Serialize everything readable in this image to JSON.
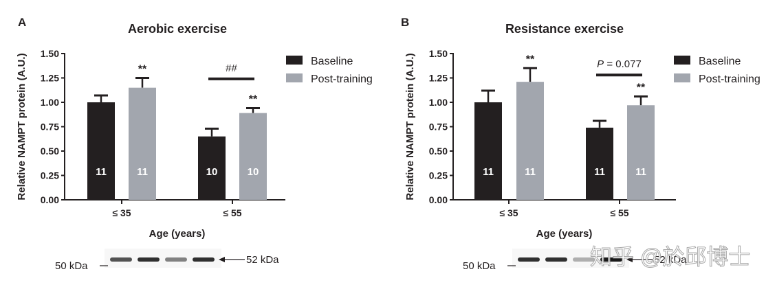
{
  "colors": {
    "baseline": "#231f20",
    "post": "#a2a6ae",
    "axis": "#231f20"
  },
  "chart_data": [
    {
      "type": "bar",
      "panel_label": "A",
      "title": "Aerobic exercise",
      "xlabel": "Age (years)",
      "ylabel": "Relative NAMPT protein (A.U.)",
      "ylim": [
        0,
        1.5
      ],
      "yticks": [
        "0.00",
        "0.25",
        "0.50",
        "0.75",
        "1.00",
        "1.25",
        "1.50"
      ],
      "categories": [
        "≤ 35",
        "≤ 55"
      ],
      "legend": {
        "placement": "top-right",
        "entries": [
          "Baseline",
          "Post-training"
        ]
      },
      "series": [
        {
          "name": "Baseline",
          "values": [
            1.0,
            0.65
          ],
          "errors": [
            0.07,
            0.08
          ],
          "n": [
            "11",
            "10"
          ],
          "annotations": [
            "",
            ""
          ]
        },
        {
          "name": "Post-training",
          "values": [
            1.15,
            0.89
          ],
          "errors": [
            0.1,
            0.05
          ],
          "n": [
            "11",
            "10"
          ],
          "annotations": [
            "**",
            "**"
          ]
        }
      ],
      "bracket": {
        "category": 1,
        "label": "##",
        "italic_prefix": "",
        "y": 1.24
      },
      "blot": {
        "left_label": "50 kDa",
        "right_label": "52 kDa",
        "band_intensities": [
          0.75,
          0.9,
          0.55,
          0.9
        ]
      }
    },
    {
      "type": "bar",
      "panel_label": "B",
      "title": "Resistance exercise",
      "xlabel": "Age (years)",
      "ylabel": "Relative NAMPT protein (A.U.)",
      "ylim": [
        0,
        1.5
      ],
      "yticks": [
        "0.00",
        "0.25",
        "0.50",
        "0.75",
        "1.00",
        "1.25",
        "1.50"
      ],
      "categories": [
        "≤ 35",
        "≤ 55"
      ],
      "legend": {
        "placement": "top-right",
        "entries": [
          "Baseline",
          "Post-training"
        ]
      },
      "series": [
        {
          "name": "Baseline",
          "values": [
            1.0,
            0.74
          ],
          "errors": [
            0.12,
            0.07
          ],
          "n": [
            "11",
            "11"
          ],
          "annotations": [
            "",
            ""
          ]
        },
        {
          "name": "Post-training",
          "values": [
            1.21,
            0.97
          ],
          "errors": [
            0.14,
            0.09
          ],
          "n": [
            "11",
            "11"
          ],
          "annotations": [
            "**",
            "**"
          ]
        }
      ],
      "bracket": {
        "category": 1,
        "label": " = 0.077",
        "italic_prefix": "P",
        "y": 1.28
      },
      "blot": {
        "left_label": "50 kDa",
        "right_label": "52 kDa",
        "band_intensities": [
          0.9,
          0.9,
          0.35,
          1.0
        ]
      }
    }
  ],
  "watermark": "知乎 @於邱博士"
}
